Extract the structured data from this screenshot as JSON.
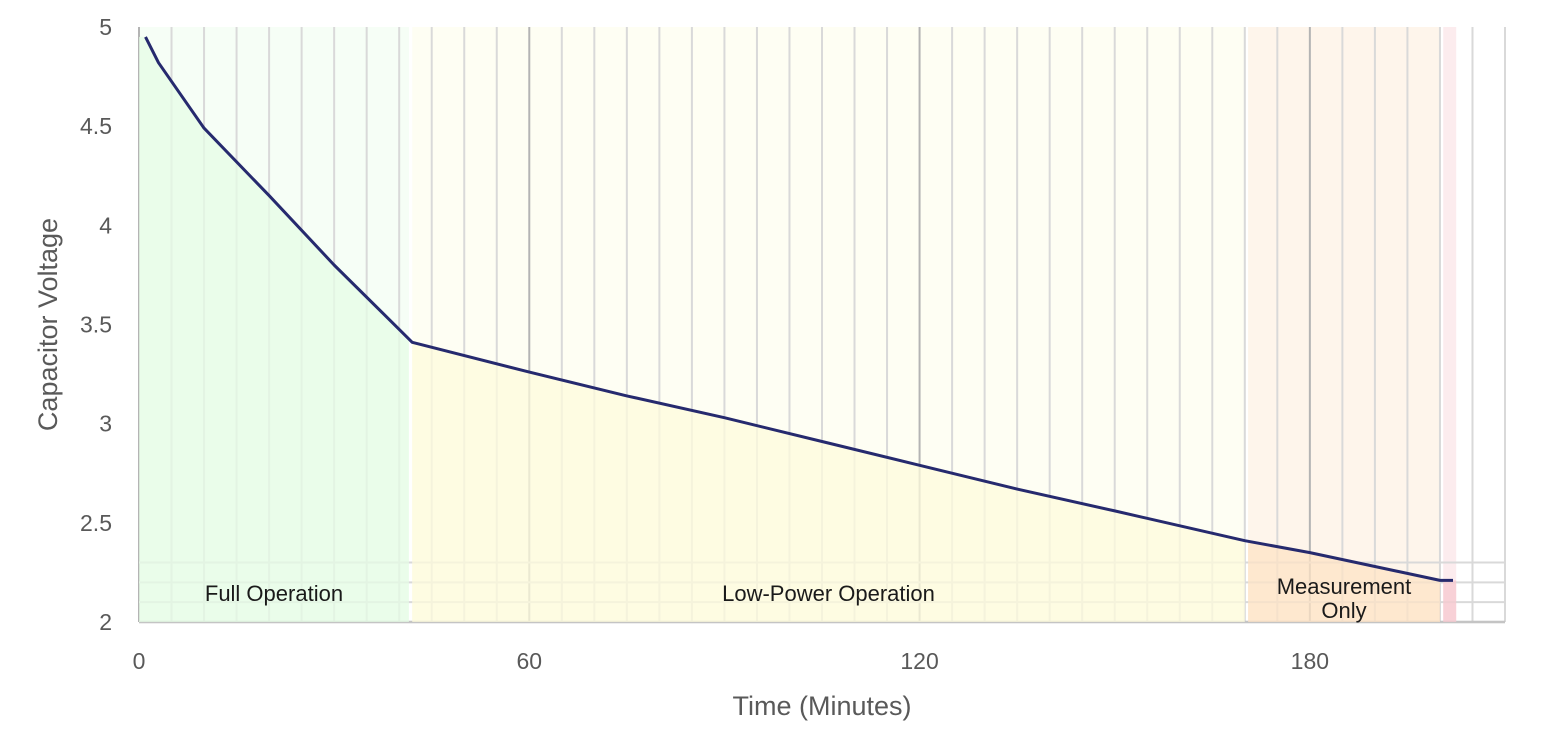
{
  "chart_data": {
    "type": "area",
    "xlabel": "Time (Minutes)",
    "ylabel": "Capacitor Voltage",
    "xlim": [
      0,
      210
    ],
    "ylim": [
      2,
      5
    ],
    "xticks": [
      0,
      60,
      120,
      180
    ],
    "yticks": [
      2,
      2.5,
      3,
      3.5,
      4,
      4.5,
      5
    ],
    "xtick_labels": [
      "0",
      "60",
      "120",
      "180"
    ],
    "ytick_labels": [
      "2",
      "2.5",
      "3",
      "3.5",
      "4",
      "4.5",
      "5"
    ],
    "grid": true,
    "series": [
      {
        "color": "#262a6e",
        "x": [
          1,
          3,
          10,
          20,
          30,
          42,
          60,
          75,
          90,
          105,
          120,
          135,
          150,
          170,
          180,
          200,
          202
        ],
        "y": [
          4.95,
          4.82,
          4.49,
          4.15,
          3.8,
          3.41,
          3.26,
          3.14,
          3.03,
          2.91,
          2.79,
          2.67,
          2.56,
          2.41,
          2.35,
          2.21,
          2.21
        ]
      }
    ],
    "regions": [
      {
        "label": "Full Operation",
        "x_start": 0,
        "x_end": 41.5,
        "color": "#e6fce6"
      },
      {
        "label": "Low-Power Operation",
        "x_start": 42,
        "x_end": 170,
        "color": "#fdfbdc"
      },
      {
        "label": "Measurement Only",
        "x_start": 170.5,
        "x_end": 200,
        "color": "#fde3c6"
      },
      {
        "label": "",
        "x_start": 200.5,
        "x_end": 202.5,
        "color": "#f7c8cf"
      }
    ]
  }
}
